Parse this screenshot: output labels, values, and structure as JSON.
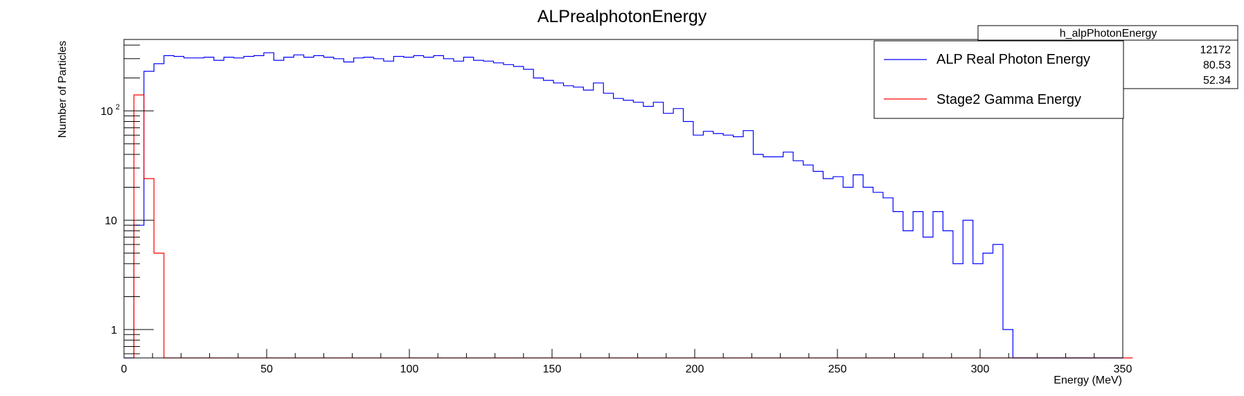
{
  "chart_data": {
    "type": "histogram-step",
    "title": "ALPrealphotonEnergy",
    "xlabel": "Energy (MeV)",
    "ylabel": "Number of Particles",
    "xlim": [
      0,
      350
    ],
    "ylim": [
      0.55,
      450
    ],
    "yscale": "log",
    "grid": false,
    "bin_width": 3.5,
    "x_ticks": [
      {
        "value": 0,
        "label": "0"
      },
      {
        "value": 50,
        "label": "50"
      },
      {
        "value": 100,
        "label": "100"
      },
      {
        "value": 150,
        "label": "150"
      },
      {
        "value": 200,
        "label": "200"
      },
      {
        "value": 250,
        "label": "250"
      },
      {
        "value": 300,
        "label": "300"
      },
      {
        "value": 350,
        "label": "350"
      }
    ],
    "y_ticks": [
      {
        "value": 1,
        "label": "1"
      },
      {
        "value": 10,
        "label": "10"
      },
      {
        "value": 100,
        "label": "10",
        "exponent": "2"
      }
    ],
    "legend": {
      "position": "top-right",
      "entries": [
        {
          "label": "ALP Real Photon Energy",
          "color": "#0000ff"
        },
        {
          "label": "Stage2 Gamma Energy",
          "color": "#ff0000"
        }
      ]
    },
    "stats_box": {
      "name": "h_alpPhotonEnergy",
      "values": [
        "12172",
        "80.53",
        "52.34"
      ]
    },
    "series": [
      {
        "name": "ALP Real Photon Energy",
        "color": "#0000ff",
        "values": [
          0,
          9,
          230,
          270,
          320,
          315,
          305,
          305,
          310,
          290,
          310,
          305,
          315,
          320,
          340,
          290,
          310,
          325,
          310,
          320,
          310,
          300,
          280,
          305,
          310,
          300,
          285,
          315,
          310,
          320,
          310,
          320,
          300,
          285,
          310,
          290,
          285,
          275,
          265,
          255,
          240,
          200,
          190,
          180,
          170,
          165,
          155,
          180,
          145,
          130,
          125,
          120,
          110,
          120,
          95,
          105,
          80,
          60,
          65,
          62,
          60,
          58,
          66,
          40,
          38,
          38,
          42,
          35,
          32,
          28,
          24,
          25,
          20,
          26,
          20,
          18,
          16,
          12,
          8,
          12,
          7,
          12,
          8,
          4,
          10,
          4,
          5,
          6,
          1,
          0,
          0,
          0,
          0,
          0,
          0,
          0,
          0,
          0,
          0,
          0
        ]
      },
      {
        "name": "Stage2 Gamma Energy",
        "color": "#ff0000",
        "values": [
          140,
          24,
          5,
          0,
          0,
          0,
          0,
          0,
          0,
          0,
          0,
          0,
          0,
          0,
          0,
          0,
          0,
          0,
          0,
          0,
          0,
          0,
          0,
          0,
          0,
          0,
          0,
          0,
          0,
          0,
          0,
          0,
          0,
          0,
          0,
          0,
          0,
          0,
          0,
          0,
          0,
          0,
          0,
          0,
          0,
          0,
          0,
          0,
          0,
          0,
          0,
          0,
          0,
          0,
          0,
          0,
          0,
          0,
          0,
          0,
          0,
          0,
          0,
          0,
          0,
          0,
          0,
          0,
          0,
          0,
          0,
          0,
          0,
          0,
          0,
          0,
          0,
          0,
          0,
          0,
          0,
          0,
          0,
          0,
          0,
          0,
          0,
          0,
          0,
          0,
          0,
          0,
          0,
          0,
          0,
          0,
          0,
          0,
          0,
          0
        ],
        "x_start": 3.5
      }
    ]
  }
}
